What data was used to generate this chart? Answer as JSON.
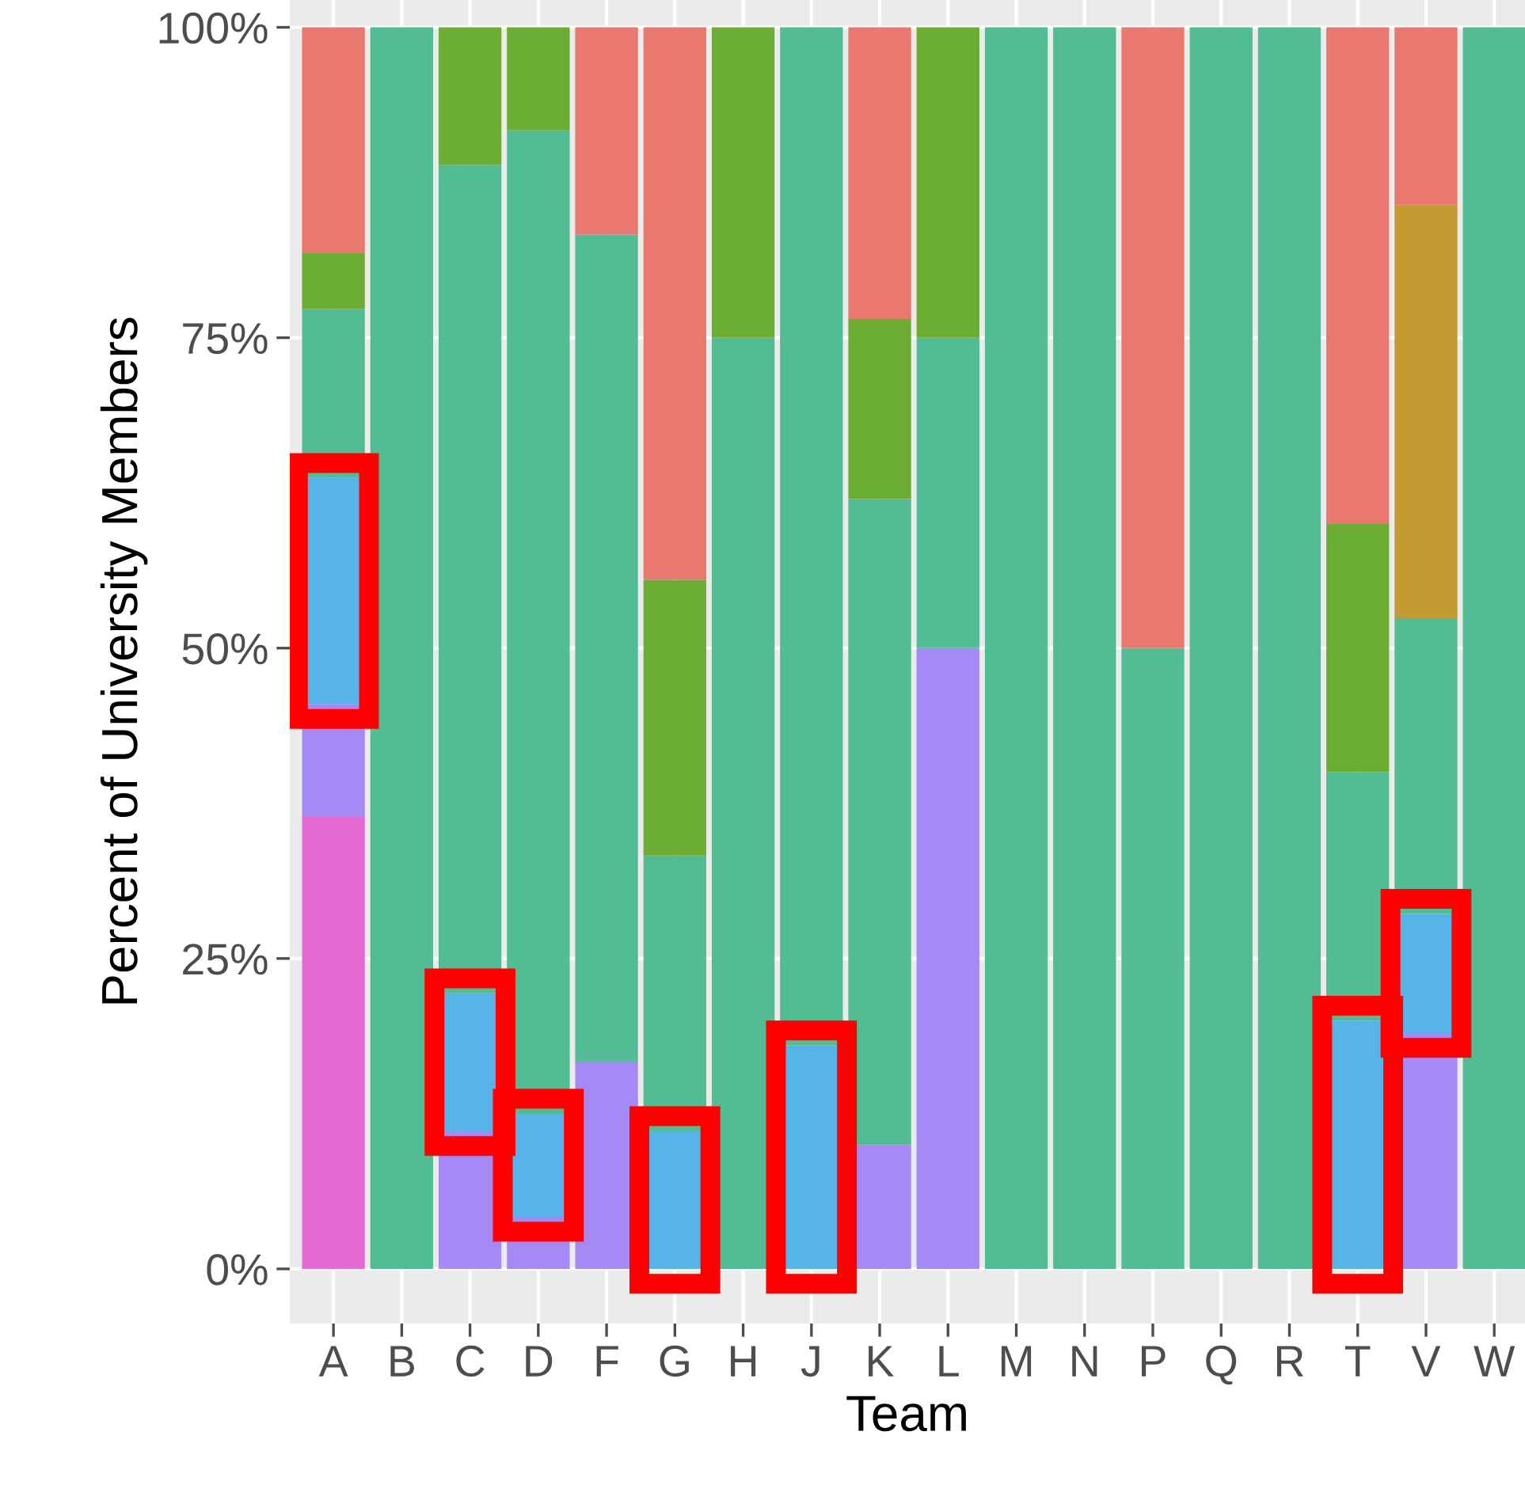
{
  "chart_data": {
    "type": "bar",
    "stacked": true,
    "xlabel": "Team",
    "ylabel": "Percent of University Members",
    "categories": [
      "A",
      "B",
      "C",
      "D",
      "F",
      "G",
      "H",
      "J",
      "K",
      "L",
      "M",
      "N",
      "P",
      "Q",
      "R",
      "T",
      "V",
      "W"
    ],
    "series": [
      {
        "color": "#e36bd3",
        "values": [
          36.4,
          null,
          null,
          null,
          null,
          null,
          null,
          null,
          null,
          null,
          null,
          null,
          null,
          null,
          null,
          null,
          null,
          null
        ]
      },
      {
        "color": "#a58af5",
        "values": [
          9.1,
          null,
          11.1,
          4.2,
          16.7,
          null,
          null,
          null,
          10,
          50,
          null,
          null,
          null,
          null,
          null,
          null,
          19.0,
          null
        ]
      },
      {
        "color": "#56b4e9",
        "values": [
          18.2,
          null,
          11.1,
          8.3,
          null,
          11.1,
          null,
          18,
          null,
          null,
          null,
          null,
          null,
          null,
          null,
          20,
          9.6,
          null
        ]
      },
      {
        "color": "#52bd95",
        "values": [
          13.6,
          100,
          66.7,
          79.2,
          66.6,
          22.2,
          75,
          82,
          52,
          25,
          100,
          100,
          50,
          100,
          100,
          20,
          23.8,
          100
        ]
      },
      {
        "color": "#c49a32",
        "values": [
          null,
          null,
          null,
          null,
          null,
          null,
          null,
          null,
          null,
          null,
          null,
          null,
          null,
          null,
          null,
          null,
          33.3,
          null
        ]
      },
      {
        "color": "#6cae34",
        "values": [
          4.5,
          null,
          11.1,
          8.3,
          null,
          22.2,
          25,
          null,
          14.5,
          25,
          null,
          null,
          null,
          null,
          null,
          20,
          null,
          null
        ]
      },
      {
        "color": "#e9796e",
        "values": [
          18.2,
          null,
          null,
          null,
          16.7,
          44.5,
          null,
          null,
          23.5,
          null,
          null,
          null,
          50,
          null,
          null,
          40,
          14.3,
          null
        ]
      }
    ],
    "ylim": [
      -4.4,
      102.2
    ],
    "yticks": [
      {
        "value": 0,
        "label": "0%"
      },
      {
        "value": 25,
        "label": "25%"
      },
      {
        "value": 50,
        "label": "50%"
      },
      {
        "value": 75,
        "label": "75%"
      },
      {
        "value": 100,
        "label": "100%"
      }
    ],
    "grid": true
  }
}
